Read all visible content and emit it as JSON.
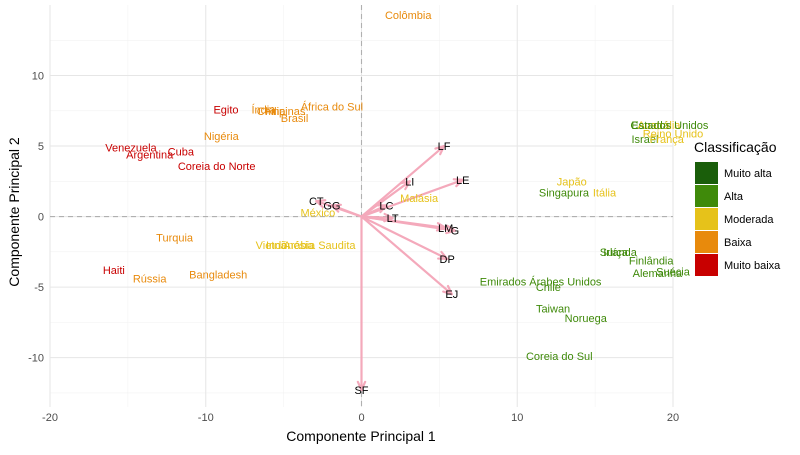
{
  "chart_data": {
    "type": "scatter",
    "title": "",
    "xlabel": "Componente Principal 1",
    "ylabel": "Componente Principal 2",
    "xlim": [
      -20,
      20
    ],
    "ylim": [
      -13.5,
      15
    ],
    "x_ticks": [
      -20,
      -10,
      0,
      10,
      20
    ],
    "y_ticks": [
      -10,
      -5,
      0,
      5,
      10
    ],
    "grid": true,
    "reference_lines": {
      "x": 0,
      "y": 0,
      "style": "dashed"
    },
    "legend": {
      "title": "Classificação",
      "position": "right",
      "items": [
        {
          "label": "Muito alta",
          "color": "#1a5e0a"
        },
        {
          "label": "Alta",
          "color": "#3f8a0a"
        },
        {
          "label": "Moderada",
          "color": "#e6c21a"
        },
        {
          "label": "Baixa",
          "color": "#e88a0c"
        },
        {
          "label": "Muito baixa",
          "color": "#c80000"
        }
      ]
    },
    "countries": [
      {
        "label": "Colômbia",
        "x": 3,
        "y": 14.3,
        "class": "Baixa"
      },
      {
        "label": "Egito",
        "x": -8.7,
        "y": 7.6,
        "class": "Muito baixa"
      },
      {
        "label": "Índia",
        "x": -6.3,
        "y": 7.6,
        "class": "Baixa"
      },
      {
        "label": "China",
        "x": -5.8,
        "y": 7.5,
        "class": "Baixa"
      },
      {
        "label": "Filipinas",
        "x": -4.9,
        "y": 7.5,
        "class": "Baixa"
      },
      {
        "label": "África do Sul",
        "x": -1.9,
        "y": 7.8,
        "class": "Baixa"
      },
      {
        "label": "Brasil",
        "x": -4.3,
        "y": 7.0,
        "class": "Baixa"
      },
      {
        "label": "Nigéria",
        "x": -9.0,
        "y": 5.7,
        "class": "Baixa"
      },
      {
        "label": "Venezuela",
        "x": -14.8,
        "y": 4.9,
        "class": "Muito baixa"
      },
      {
        "label": "Argentina",
        "x": -13.6,
        "y": 4.4,
        "class": "Muito baixa"
      },
      {
        "label": "Cuba",
        "x": -11.6,
        "y": 4.6,
        "class": "Muito baixa"
      },
      {
        "label": "Coreia do Norte",
        "x": -9.3,
        "y": 3.6,
        "class": "Muito baixa"
      },
      {
        "label": "Malásia",
        "x": 3.7,
        "y": 1.3,
        "class": "Moderada"
      },
      {
        "label": "México",
        "x": -2.8,
        "y": 0.3,
        "class": "Moderada"
      },
      {
        "label": "Turquia",
        "x": -12.0,
        "y": -1.5,
        "class": "Baixa"
      },
      {
        "label": "Vietnã",
        "x": -5.8,
        "y": -2.0,
        "class": "Moderada"
      },
      {
        "label": "Indonésia",
        "x": -4.6,
        "y": -2.0,
        "class": "Moderada"
      },
      {
        "label": "Arábia Saudita",
        "x": -2.7,
        "y": -2.0,
        "class": "Moderada"
      },
      {
        "label": "Haiti",
        "x": -15.9,
        "y": -3.8,
        "class": "Muito baixa"
      },
      {
        "label": "Rússia",
        "x": -13.6,
        "y": -4.4,
        "class": "Baixa"
      },
      {
        "label": "Bangladesh",
        "x": -9.2,
        "y": -4.1,
        "class": "Baixa"
      },
      {
        "label": "Japão",
        "x": 13.5,
        "y": 2.5,
        "class": "Moderada"
      },
      {
        "label": "Singapura",
        "x": 13.0,
        "y": 1.7,
        "class": "Alta"
      },
      {
        "label": "Itália",
        "x": 15.6,
        "y": 1.7,
        "class": "Moderada"
      },
      {
        "label": "Emirados Árabes Unidos",
        "x": 11.5,
        "y": -4.6,
        "class": "Alta"
      },
      {
        "label": "Chile",
        "x": 12.0,
        "y": -5.0,
        "class": "Alta"
      },
      {
        "label": "Taiwan",
        "x": 12.3,
        "y": -6.5,
        "class": "Alta"
      },
      {
        "label": "Noruega",
        "x": 14.4,
        "y": -7.2,
        "class": "Alta"
      },
      {
        "label": "Coreia do Sul",
        "x": 12.7,
        "y": -9.9,
        "class": "Alta"
      },
      {
        "label": "Suíça",
        "x": 16.2,
        "y": -2.5,
        "class": "Alta"
      },
      {
        "label": "Irlanda",
        "x": 16.6,
        "y": -2.5,
        "class": "Alta"
      },
      {
        "label": "Finlândia",
        "x": 18.6,
        "y": -3.1,
        "class": "Alta"
      },
      {
        "label": "Alemanha",
        "x": 19.0,
        "y": -4.0,
        "class": "Alta"
      },
      {
        "label": "Suécia",
        "x": 20.0,
        "y": -3.9,
        "class": "Alta"
      },
      {
        "label": "Canadá",
        "x": 18.5,
        "y": 6.5,
        "class": "Alta"
      },
      {
        "label": "Austrália",
        "x": 19.1,
        "y": 6.5,
        "class": "Moderada"
      },
      {
        "label": "Estados Unidos",
        "x": 19.8,
        "y": 6.5,
        "class": "Alta"
      },
      {
        "label": "Israel",
        "x": 18.2,
        "y": 5.5,
        "class": "Alta"
      },
      {
        "label": "França",
        "x": 19.6,
        "y": 5.5,
        "class": "Moderada"
      },
      {
        "label": "Reino Unido",
        "x": 20.0,
        "y": 5.9,
        "class": "Moderada"
      }
    ],
    "loadings": [
      {
        "label": "LF",
        "x": 5.3,
        "y": 5.0
      },
      {
        "label": "LI",
        "x": 3.1,
        "y": 2.5
      },
      {
        "label": "LE",
        "x": 6.5,
        "y": 2.6
      },
      {
        "label": "LC",
        "x": 1.6,
        "y": 0.8
      },
      {
        "label": "LT",
        "x": 2.0,
        "y": -0.1
      },
      {
        "label": "LM",
        "x": 5.4,
        "y": -0.8
      },
      {
        "label": "G",
        "x": 6.0,
        "y": -1.0
      },
      {
        "label": "DP",
        "x": 5.5,
        "y": -3.0
      },
      {
        "label": "EJ",
        "x": 5.8,
        "y": -5.5
      },
      {
        "label": "SF",
        "x": 0.0,
        "y": -12.3
      },
      {
        "label": "CT",
        "x": -2.9,
        "y": 1.1
      },
      {
        "label": "GG",
        "x": -1.9,
        "y": 0.8
      }
    ]
  }
}
